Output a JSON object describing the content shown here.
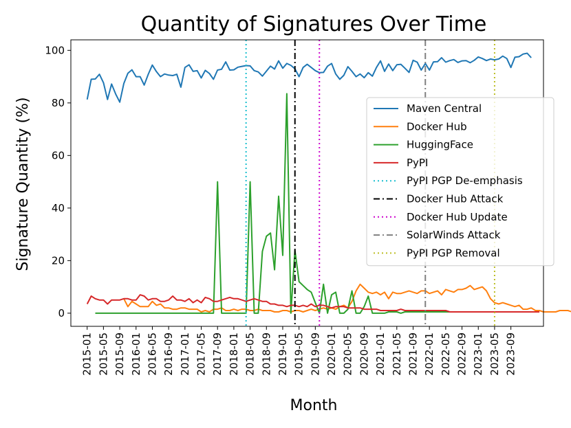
{
  "chart_data": {
    "type": "line",
    "title": "Quantity of Signatures Over Time",
    "xlabel": "Month",
    "ylabel": "Signature Quantity (%)",
    "ylim": [
      -5,
      104
    ],
    "yticks": [
      0,
      20,
      40,
      60,
      80,
      100
    ],
    "x_start": "2015-01",
    "x_end": "2024-01",
    "xticks": [
      "2015-01",
      "2015-05",
      "2015-09",
      "2016-01",
      "2016-05",
      "2016-09",
      "2017-01",
      "2017-05",
      "2017-09",
      "2018-01",
      "2018-05",
      "2018-09",
      "2019-01",
      "2019-05",
      "2019-09",
      "2020-01",
      "2020-05",
      "2020-09",
      "2021-01",
      "2021-05",
      "2021-09",
      "2022-01",
      "2022-05",
      "2022-09",
      "2023-01",
      "2023-05",
      "2023-09"
    ],
    "grid": false,
    "legend_position": "center-right",
    "series": [
      {
        "name": "Maven Central",
        "color": "#1f77b4",
        "x_start": "2015-01",
        "values": [
          81.3,
          89.0,
          89.1,
          90.9,
          87.7,
          81.3,
          87.2,
          83.4,
          80.3,
          87.4,
          91.3,
          92.6,
          90.0,
          90.0,
          86.8,
          90.9,
          94.4,
          91.9,
          90.0,
          91.0,
          90.6,
          90.4,
          90.9,
          86.0,
          93.5,
          94.5,
          92.0,
          92.3,
          89.5,
          92.4,
          91.2,
          89.0,
          92.5,
          92.8,
          95.6,
          92.5,
          92.6,
          93.6,
          93.9,
          94.2,
          94.1,
          92.3,
          91.8,
          90.2,
          92.1,
          94.0,
          92.9,
          96.0,
          93.2,
          95.0,
          94.3,
          93.0,
          90.0,
          93.5,
          94.7,
          93.5,
          92.3,
          91.5,
          91.6,
          94.0,
          95.0,
          91.0,
          89.0,
          90.5,
          93.8,
          92.0,
          90.0,
          91.0,
          89.6,
          91.5,
          90.2,
          93.5,
          96.0,
          92.0,
          94.8,
          92.3,
          94.5,
          94.7,
          93.2,
          91.6,
          96.2,
          95.5,
          92.5,
          95.0,
          92.5,
          95.6,
          95.7,
          97.2,
          95.5,
          96.1,
          96.5,
          95.4,
          96.0,
          96.1,
          95.3,
          96.2,
          97.5,
          96.9,
          96.1,
          96.7,
          96.4,
          96.7,
          97.8,
          96.9,
          93.5,
          97.4,
          97.6,
          98.6,
          98.9,
          97.2
        ]
      },
      {
        "name": "Docker Hub",
        "color": "#ff7f0e",
        "x_start": "2015-10",
        "values": [
          5.5,
          2.5,
          4.5,
          3.5,
          2.5,
          2.5,
          2.5,
          4.5,
          3.0,
          3.5,
          2.0,
          2.0,
          1.5,
          1.5,
          2.0,
          2.0,
          1.5,
          1.5,
          1.5,
          0.5,
          1.0,
          0.5,
          1.5,
          1.5,
          2.0,
          1.0,
          1.0,
          1.5,
          1.0,
          1.5,
          1.5,
          1.0,
          1.0,
          1.5,
          1.0,
          1.0,
          1.0,
          0.5,
          0.5,
          1.0,
          1.0,
          0.5,
          1.0,
          1.0,
          0.5,
          1.0,
          1.5,
          1.0,
          1.5,
          2.0,
          1.5,
          2.0,
          1.5,
          2.5,
          3.0,
          2.0,
          4.5,
          8.5,
          11.0,
          9.5,
          8.0,
          7.5,
          8.0,
          7.0,
          8.0,
          5.5,
          8.0,
          7.5,
          7.5,
          8.0,
          8.5,
          8.0,
          7.5,
          8.5,
          8.5,
          7.5,
          8.0,
          8.5,
          7.0,
          9.0,
          8.5,
          8.0,
          9.0,
          9.0,
          9.5,
          10.5,
          9.0,
          9.5,
          10.0,
          8.5,
          5.5,
          4.0,
          3.5,
          4.0,
          3.5,
          3.0,
          2.5,
          3.0,
          1.5,
          1.5,
          2.0,
          1.0,
          1.0,
          0.5,
          0.5,
          0.5,
          0.5,
          1.0,
          1.0,
          1.0,
          0.5,
          0.5,
          1.0
        ]
      },
      {
        "name": "HuggingFace",
        "color": "#2ca02c",
        "x_start": "2015-03",
        "values": [
          0,
          0,
          0,
          0,
          0,
          0,
          0,
          0,
          0,
          0,
          0,
          0,
          0,
          0,
          0,
          0,
          0,
          0,
          0,
          0,
          0,
          0,
          0,
          0,
          0,
          0,
          0,
          0,
          0,
          0,
          50,
          0,
          0,
          0,
          0,
          0,
          0,
          0,
          50,
          0,
          0,
          23.5,
          29.3,
          30.5,
          16.5,
          44.5,
          22.0,
          83.5,
          0,
          24,
          12,
          10.5,
          9,
          8,
          4,
          0,
          11,
          0,
          7,
          8,
          0,
          0,
          1.5,
          8.5,
          0,
          0,
          2.5,
          6.5,
          0,
          0,
          0,
          0,
          0.5,
          0.5,
          0.5,
          0,
          0.5,
          0.5,
          0.5,
          0.5,
          0.5,
          0.5,
          0.5,
          0.5,
          0.5,
          0.5,
          0.5,
          0.5,
          0.5,
          0.5,
          0.5,
          0.5,
          0.5,
          0.5,
          0.5,
          0.5,
          0.5,
          0.5,
          0.5,
          0.5,
          0.5,
          0.5,
          0.5,
          0.5,
          0.5,
          0.5,
          0.5,
          0.5,
          0.5
        ]
      },
      {
        "name": "PyPI",
        "color": "#d62728",
        "x_start": "2015-01",
        "values": [
          3.5,
          6.5,
          5.5,
          5.0,
          5.0,
          3.5,
          5.0,
          5.0,
          5.0,
          5.5,
          5.5,
          5.0,
          5.0,
          7.0,
          6.5,
          5.0,
          5.5,
          5.5,
          4.5,
          4.5,
          5.0,
          6.5,
          5.0,
          5.0,
          4.5,
          5.5,
          4.0,
          5.0,
          4.0,
          6.0,
          5.5,
          4.5,
          4.5,
          5.0,
          5.5,
          6.0,
          5.5,
          5.5,
          5.0,
          4.5,
          5.0,
          5.5,
          5.0,
          4.5,
          4.5,
          3.5,
          3.5,
          3.0,
          3.0,
          2.5,
          3.0,
          3.0,
          2.5,
          3.0,
          2.5,
          3.5,
          2.5,
          3.0,
          3.0,
          2.5,
          2.0,
          2.5,
          2.5,
          2.5,
          2.0,
          2.0,
          2.0,
          2.0,
          1.5,
          1.5,
          1.5,
          1.5,
          1.0,
          1.0,
          1.0,
          1.0,
          1.0,
          1.5,
          1.0,
          1.0,
          1.0,
          1.0,
          1.0,
          1.0,
          1.0,
          1.0,
          1.0,
          1.0,
          1.0,
          0.5,
          0.5,
          0.5,
          0.5,
          0.5,
          0.5,
          0.5,
          0.5,
          0.5,
          0.5,
          0.5,
          0.5,
          0.5,
          0.5,
          0.5,
          0.5,
          0.5,
          0.5,
          0.5,
          0.5,
          0.5,
          0.5,
          0.5
        ]
      }
    ],
    "vlines": [
      {
        "name": "PyPI PGP De-emphasis",
        "x": "2018-04",
        "color": "#17becf",
        "style": "dotted"
      },
      {
        "name": "Docker Hub Attack",
        "x": "2019-04",
        "color": "#000000",
        "style": "dashdot"
      },
      {
        "name": "Docker Hub Update",
        "x": "2019-10",
        "color": "#cc00cc",
        "style": "dotted"
      },
      {
        "name": "SolarWinds Attack",
        "x": "2021-12",
        "color": "#7f7f7f",
        "style": "dashdot"
      },
      {
        "name": "PyPI PGP Removal",
        "x": "2023-05",
        "color": "#bcbd22",
        "style": "dotted"
      }
    ]
  }
}
